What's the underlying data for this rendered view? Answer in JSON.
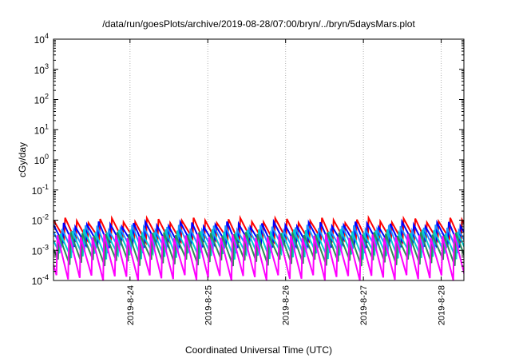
{
  "chart_data": {
    "type": "line",
    "title": "/data/run/goesPlots/archive/2019-08-28/07:00/bryn/../bryn/5daysMars.plot",
    "xlabel": "Coordinated Universal Time (UTC)",
    "ylabel": "cGy/day",
    "y_scale": "log",
    "ylim": [
      0.0001,
      10000
    ],
    "y_ticks": [
      {
        "value": 0.0001,
        "base": "10",
        "exp": "-4"
      },
      {
        "value": 0.001,
        "base": "10",
        "exp": "-3"
      },
      {
        "value": 0.01,
        "base": "10",
        "exp": "-2"
      },
      {
        "value": 0.1,
        "base": "10",
        "exp": "-1"
      },
      {
        "value": 1,
        "base": "10",
        "exp": "0"
      },
      {
        "value": 10,
        "base": "10",
        "exp": "1"
      },
      {
        "value": 100,
        "base": "10",
        "exp": "2"
      },
      {
        "value": 1000,
        "base": "10",
        "exp": "3"
      },
      {
        "value": 10000,
        "base": "10",
        "exp": "4"
      }
    ],
    "x_range_days": [
      "2019-08-23 00:24",
      "2019-08-28 07:00"
    ],
    "x_ticks": [
      {
        "label": "2019-8-24",
        "day": 1.0
      },
      {
        "label": "2019-8-25",
        "day": 2.0
      },
      {
        "label": "2019-8-26",
        "day": 3.0
      },
      {
        "label": "2019-8-27",
        "day": 4.0
      },
      {
        "label": "2019-8-28",
        "day": 5.0
      }
    ],
    "grid": true,
    "legend": "none",
    "cycle_hours": 3.6,
    "series": [
      {
        "color": "#ff0000",
        "peak": [
          0.008,
          0.012
        ],
        "trough": [
          0.0018,
          0.0025
        ]
      },
      {
        "color": "#0000ff",
        "peak": [
          0.006,
          0.009
        ],
        "trough": [
          0.0012,
          0.0018
        ]
      },
      {
        "color": "#1e90ff",
        "peak": [
          0.0045,
          0.007
        ],
        "trough": [
          0.0008,
          0.0012
        ]
      },
      {
        "color": "#00ced1",
        "peak": [
          0.0035,
          0.005
        ],
        "trough": [
          0.0005,
          0.0008
        ]
      },
      {
        "color": "#2e8b57",
        "peak": [
          0.003,
          0.004
        ],
        "trough": [
          0.0003,
          0.0005
        ]
      },
      {
        "color": "#ff00ff",
        "peak": [
          0.0025,
          0.0035
        ],
        "trough": [
          0.0001,
          0.00015
        ]
      }
    ]
  }
}
